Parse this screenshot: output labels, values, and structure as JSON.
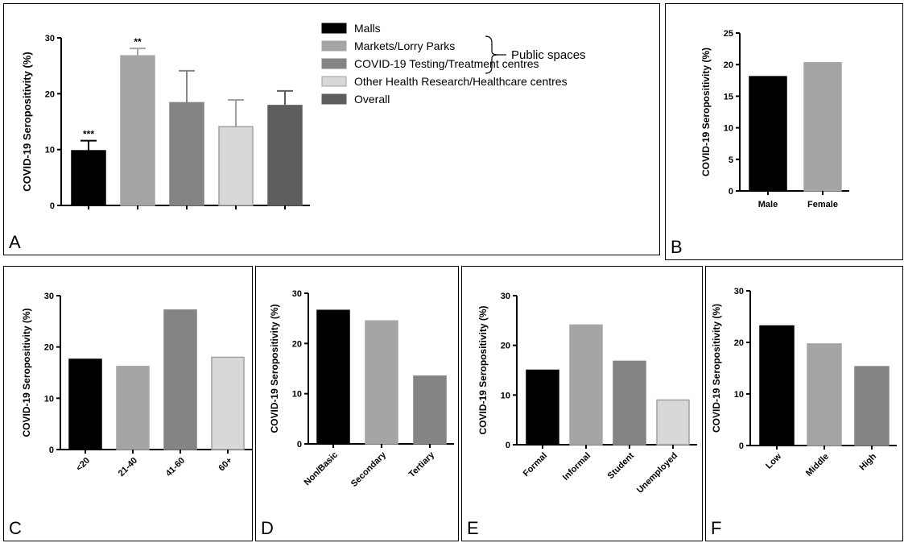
{
  "panels": {
    "A": "A",
    "B": "B",
    "C": "C",
    "D": "D",
    "E": "E",
    "F": "F"
  },
  "legend": {
    "items": [
      {
        "label": "Malls",
        "color": "#000000"
      },
      {
        "label": "Markets/Lorry Parks",
        "color": "#a5a5a7"
      },
      {
        "label": "COVID-19 Testing/Treatment centres",
        "color": "#848484"
      },
      {
        "label": "Other Health Research/Healthcare centres",
        "color": "#d8d8d8"
      },
      {
        "label": "Overall",
        "color": "#5e5e5e"
      }
    ],
    "group_label": "Public spaces"
  },
  "chart_data": [
    {
      "id": "A",
      "type": "bar",
      "categories": [
        "Malls",
        "Markets/Lorry Parks",
        "COVID-19 Testing/Treatment centres",
        "Other Health Research/Healthcare centres",
        "Overall"
      ],
      "values": [
        9.8,
        26.8,
        18.4,
        14.1,
        17.9
      ],
      "errors": [
        1.8,
        1.3,
        5.7,
        4.8,
        2.6
      ],
      "annotations": [
        "***",
        "**",
        "",
        "",
        ""
      ],
      "colors": [
        "#000000",
        "#a5a5a7",
        "#848484",
        "#d8d8d8",
        "#5e5e5e"
      ],
      "ylabel": "COVID-19 Seropositivity (%)",
      "ylim": [
        0,
        30
      ],
      "yticks": [
        0,
        10,
        20,
        30
      ],
      "show_xticklabels": false
    },
    {
      "id": "B",
      "type": "bar",
      "categories": [
        "Male",
        "Female"
      ],
      "values": [
        18.1,
        20.3
      ],
      "colors": [
        "#000000",
        "#a5a5a7"
      ],
      "ylabel": "COVID-19 Seropositivity (%)",
      "ylim": [
        0,
        25
      ],
      "yticks": [
        0,
        5,
        10,
        15,
        20,
        25
      ]
    },
    {
      "id": "C",
      "type": "bar",
      "categories": [
        "<20",
        "21-40",
        "41-60",
        "60+"
      ],
      "values": [
        17.6,
        16.2,
        27.2,
        18.0
      ],
      "colors": [
        "#000000",
        "#a5a5a7",
        "#848484",
        "#d8d8d8"
      ],
      "ylabel": "COVID-19 Seropositivity (%)",
      "ylim": [
        0,
        30
      ],
      "yticks": [
        0,
        10,
        20,
        30
      ]
    },
    {
      "id": "D",
      "type": "bar",
      "categories": [
        "Non/Basic",
        "Secondary",
        "Tertiary"
      ],
      "values": [
        26.6,
        24.5,
        13.5
      ],
      "colors": [
        "#000000",
        "#a5a5a7",
        "#848484"
      ],
      "ylabel": "COVID-19 Seropositivity (%)",
      "ylim": [
        0,
        30
      ],
      "yticks": [
        0,
        10,
        20,
        30
      ]
    },
    {
      "id": "E",
      "type": "bar",
      "categories": [
        "Formal",
        "Informal",
        "Student",
        "Unemployed"
      ],
      "values": [
        15.0,
        24.1,
        16.8,
        9.0
      ],
      "colors": [
        "#000000",
        "#a5a5a7",
        "#848484",
        "#d8d8d8"
      ],
      "ylabel": "COVID-19 Seropositivity (%)",
      "ylim": [
        0,
        30
      ],
      "yticks": [
        0,
        10,
        20,
        30
      ]
    },
    {
      "id": "F",
      "type": "bar",
      "categories": [
        "Low",
        "Middle",
        "High"
      ],
      "values": [
        23.2,
        19.7,
        15.3
      ],
      "colors": [
        "#000000",
        "#a5a5a7",
        "#848484"
      ],
      "ylabel": "COVID-19 Seropositivity (%)",
      "ylim": [
        0,
        30
      ],
      "yticks": [
        0,
        10,
        20,
        30
      ]
    }
  ]
}
